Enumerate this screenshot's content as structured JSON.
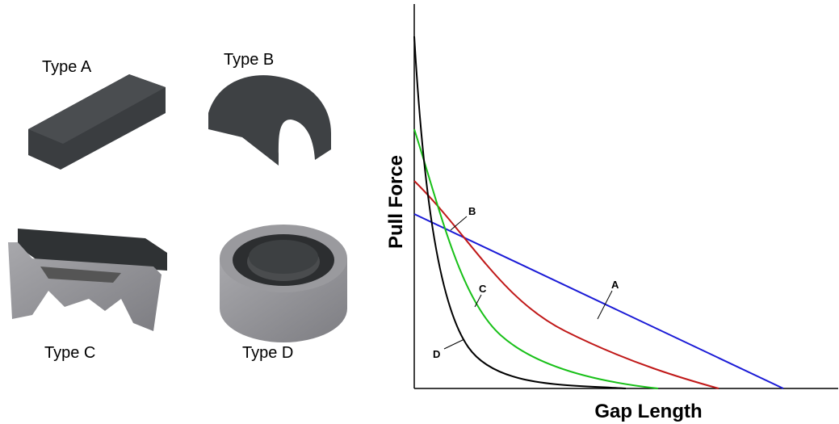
{
  "magnets": [
    "Type A",
    "Type B",
    "Type C",
    "Type D"
  ],
  "chart": {
    "y_axis_label": "Pull Force",
    "x_axis_label": "Gap Length",
    "curve_labels": [
      "A",
      "B",
      "C",
      "D"
    ]
  }
}
